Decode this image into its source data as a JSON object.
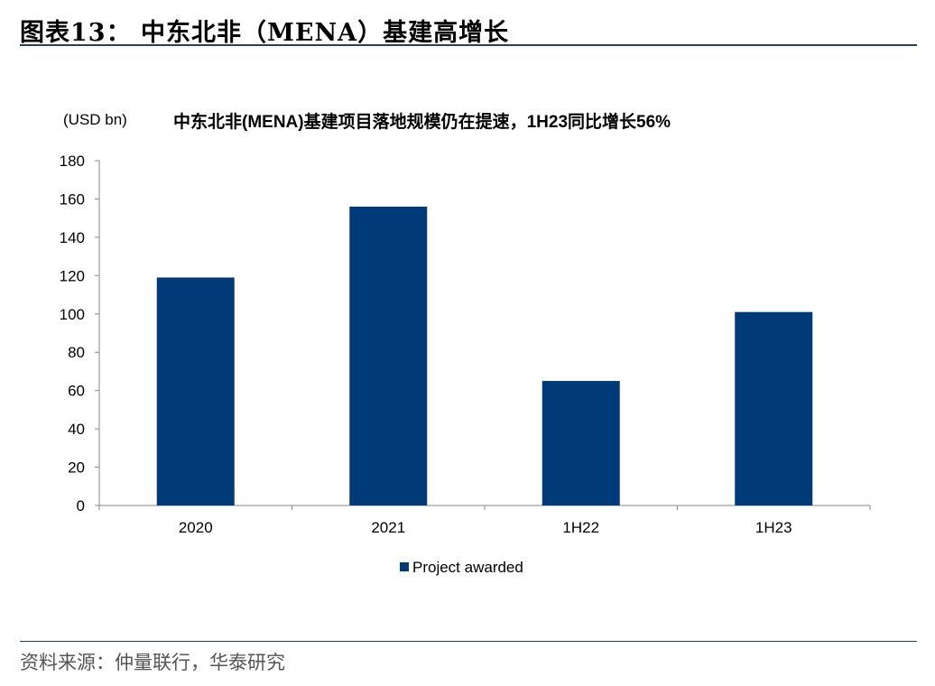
{
  "figure": {
    "caption": "图表13： 中东北非（MENA）基建高增长",
    "source": "资料来源：仲量联行，华泰研究"
  },
  "colors": {
    "bar": "#003a78",
    "rule": "#1f3f73",
    "axis": "#888888"
  },
  "chart_data": {
    "type": "bar",
    "title": "中东北非(MENA)基建项目落地规模仍在提速，1H23同比增长56%",
    "unit_label": "(USD bn)",
    "categories": [
      "2020",
      "2021",
      "1H22",
      "1H23"
    ],
    "series": [
      {
        "name": "Project awarded",
        "values": [
          119,
          156,
          65,
          101
        ]
      }
    ],
    "ylim": [
      0,
      180
    ],
    "yticks": [
      0,
      20,
      40,
      60,
      80,
      100,
      120,
      140,
      160,
      180
    ],
    "grid": false,
    "legend": "bottom-center"
  }
}
